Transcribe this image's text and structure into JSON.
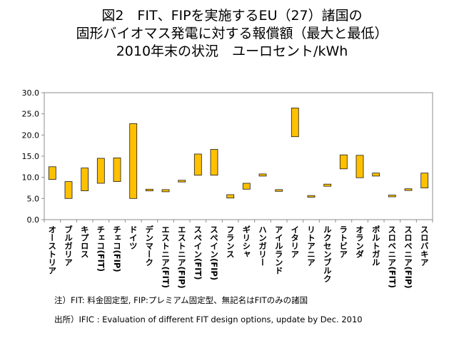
{
  "title": {
    "line1": "図2　FIT、FIPを実施するEU（27）諸国の",
    "line2": "固形バイオマス発電に対する報償額（最大と最低）",
    "line3": "2010年末の状況　ユーロセント/kWh"
  },
  "notes": {
    "note1": "注）FIT: 料金固定型, FIP:プレミアム固定型、無記名はFITのみの諸国",
    "note2": "出所）IFIC : Evaluation of different FIT design options, update by Dec. 2010"
  },
  "colors": {
    "bar_fill": "#FFC000",
    "bar_stroke": "#1a1a1a",
    "plot_border": "#8c8c8c"
  },
  "chart_data": {
    "type": "bar",
    "subtype": "floating range (min–max)",
    "ylim": [
      0,
      30
    ],
    "yticks": [
      "0.0",
      "5.0",
      "10.0",
      "15.0",
      "20.0",
      "25.0",
      "30.0"
    ],
    "grid": false,
    "categories": [
      "オーストリア",
      "ブルガリア",
      "キプロス",
      "チェコ(FIT)",
      "チェコ(FIP)",
      "ドイツ",
      "デンマーク",
      "エストニア(FIT)",
      "エストニア(FIP)",
      "スペイン(FIT)",
      "スペイン(FIP)",
      "フランス",
      "ギリシャ",
      "ハンガリー",
      "アイルランド",
      "イタリア",
      "リトアニア",
      "ルクセンブルク",
      "ラトビア",
      "オランダ",
      "ポルトガル",
      "スロベニア(FIT)",
      "スロベニア(FIP)",
      "スロバキア"
    ],
    "min": [
      9.5,
      5.0,
      6.8,
      8.6,
      9.0,
      5.0,
      6.8,
      6.6,
      8.9,
      10.5,
      10.5,
      5.1,
      7.2,
      10.3,
      6.7,
      19.6,
      5.3,
      7.9,
      12.0,
      9.9,
      10.3,
      5.4,
      6.9,
      7.5
    ],
    "max": [
      12.5,
      9.0,
      12.2,
      14.5,
      14.6,
      22.7,
      7.2,
      7.1,
      9.3,
      15.5,
      16.6,
      5.9,
      8.6,
      10.8,
      7.1,
      26.4,
      5.7,
      8.4,
      15.3,
      15.2,
      11.0,
      5.8,
      7.3,
      11.0
    ]
  }
}
